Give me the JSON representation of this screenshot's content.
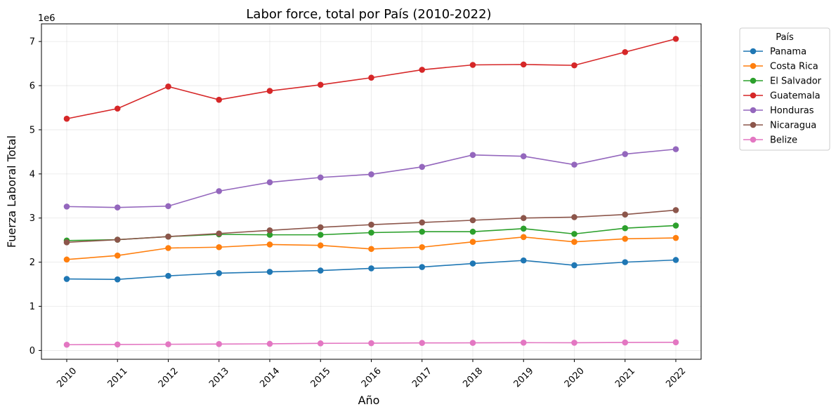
{
  "chart_data": {
    "type": "line",
    "title": "Labor force, total por País (2010-2022)",
    "xlabel": "Año",
    "ylabel": "Fuerza Laboral Total",
    "y_multiplier_label": "1e6",
    "x": [
      "2010",
      "2011",
      "2012",
      "2013",
      "2014",
      "2015",
      "2016",
      "2017",
      "2018",
      "2019",
      "2020",
      "2021",
      "2022"
    ],
    "ylim": [
      -0.2,
      7.4
    ],
    "y_ticks": [
      "0",
      "1",
      "2",
      "3",
      "4",
      "5",
      "6",
      "7"
    ],
    "grid": true,
    "legend_title": "País",
    "legend_position": "outside-right",
    "series": [
      {
        "name": "Panama",
        "color": "#1f77b4",
        "values": [
          1.62,
          1.61,
          1.69,
          1.75,
          1.78,
          1.81,
          1.86,
          1.89,
          1.97,
          2.04,
          1.93,
          2.0,
          2.05
        ]
      },
      {
        "name": "Costa Rica",
        "color": "#ff7f0e",
        "values": [
          2.06,
          2.15,
          2.32,
          2.34,
          2.4,
          2.38,
          2.3,
          2.34,
          2.46,
          2.57,
          2.46,
          2.53,
          2.55
        ]
      },
      {
        "name": "El Salvador",
        "color": "#2ca02c",
        "values": [
          2.49,
          2.51,
          2.58,
          2.63,
          2.62,
          2.62,
          2.67,
          2.69,
          2.69,
          2.76,
          2.64,
          2.77,
          2.83
        ]
      },
      {
        "name": "Guatemala",
        "color": "#d62728",
        "values": [
          5.25,
          5.48,
          5.98,
          5.68,
          5.88,
          6.02,
          6.18,
          6.36,
          6.47,
          6.48,
          6.46,
          6.76,
          7.06
        ]
      },
      {
        "name": "Honduras",
        "color": "#9467bd",
        "values": [
          3.26,
          3.24,
          3.27,
          3.61,
          3.81,
          3.92,
          3.99,
          4.16,
          4.43,
          4.4,
          4.21,
          4.45,
          4.56
        ]
      },
      {
        "name": "Nicaragua",
        "color": "#8c564b",
        "values": [
          2.45,
          2.51,
          2.58,
          2.65,
          2.72,
          2.79,
          2.85,
          2.9,
          2.95,
          3.0,
          3.02,
          3.08,
          3.18
        ]
      },
      {
        "name": "Belize",
        "color": "#e377c2",
        "values": [
          0.13,
          0.135,
          0.14,
          0.145,
          0.15,
          0.16,
          0.165,
          0.17,
          0.172,
          0.176,
          0.174,
          0.18,
          0.185
        ]
      }
    ]
  }
}
